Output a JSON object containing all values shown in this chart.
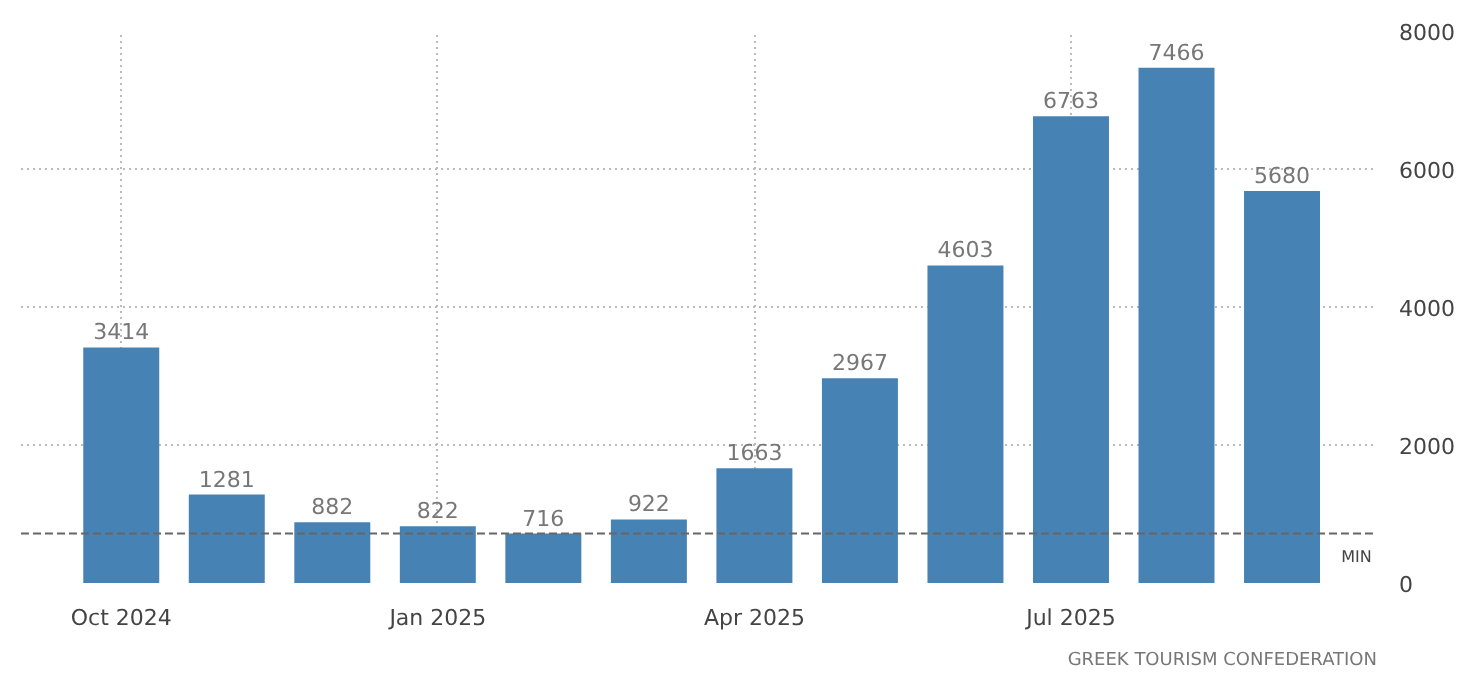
{
  "chart_data": {
    "type": "bar",
    "categories": [
      "Oct 2024",
      null,
      null,
      "Jan 2025",
      null,
      null,
      "Apr 2025",
      null,
      null,
      "Jul 2025",
      null,
      null
    ],
    "values": [
      3414,
      1281,
      882,
      822,
      716,
      922,
      1663,
      2967,
      4603,
      6763,
      7466,
      5680
    ],
    "color": "#4682b4",
    "data_labels": true,
    "ylim": [
      0,
      8000
    ],
    "yticks": [
      0,
      2000,
      4000,
      6000,
      8000
    ],
    "grid": true,
    "ref_lines": [
      {
        "axis": "y",
        "value": 716,
        "label": "MIN",
        "color": "#666666",
        "line_style": "dashed"
      }
    ],
    "annotations": [
      "GREEK TOURISM CONFEDERATION"
    ]
  }
}
